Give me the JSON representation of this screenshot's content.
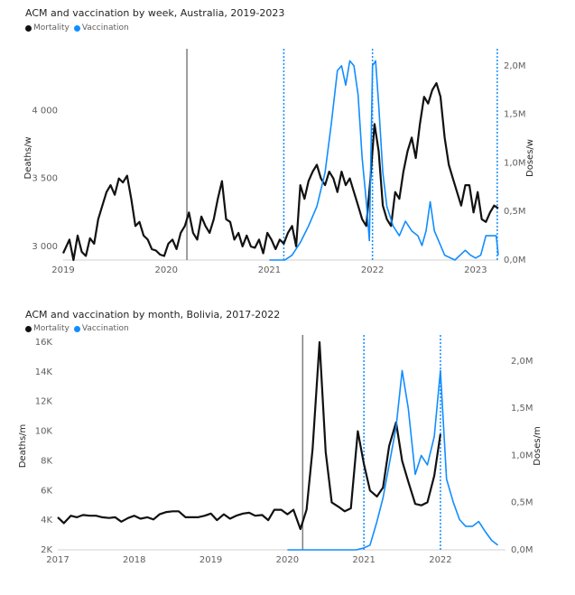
{
  "colors": {
    "mortality": "#111111",
    "vaccination": "#118dff",
    "event_line": "#7f7f7f"
  },
  "chart_data": [
    {
      "type": "line",
      "title": "ACM and vaccination by week, Australia, 2019-2023",
      "legend": {
        "placement": "top-left",
        "items": [
          "Mortality",
          "Vaccination"
        ]
      },
      "x_ticks": [
        "2019",
        "2020",
        "2021",
        "2022",
        "2023"
      ],
      "y_left": {
        "label": "Deaths/w",
        "ticks": [
          "3 000",
          "3 500",
          "4 000"
        ],
        "range": [
          2900,
          4400
        ]
      },
      "y_right": {
        "label": "Doses/w",
        "ticks": [
          "0,0M",
          "0,5M",
          "1,0M",
          "1,5M",
          "2,0M"
        ],
        "range": [
          0,
          2.1
        ]
      },
      "vertical_markers": [
        {
          "x": 2020.2,
          "style": "solid"
        },
        {
          "x": 2021.14,
          "style": "dotted"
        },
        {
          "x": 2022.0,
          "style": "dotted"
        },
        {
          "x": 2023.21,
          "style": "dotted"
        }
      ],
      "grid": false,
      "series": [
        {
          "name": "Mortality",
          "axis": "left",
          "x": [
            2019.0,
            2019.06,
            2019.1,
            2019.14,
            2019.18,
            2019.22,
            2019.26,
            2019.3,
            2019.34,
            2019.38,
            2019.42,
            2019.46,
            2019.5,
            2019.54,
            2019.58,
            2019.62,
            2019.66,
            2019.7,
            2019.74,
            2019.78,
            2019.82,
            2019.86,
            2019.9,
            2019.94,
            2019.98,
            2020.02,
            2020.06,
            2020.1,
            2020.14,
            2020.18,
            2020.22,
            2020.26,
            2020.3,
            2020.34,
            2020.38,
            2020.42,
            2020.46,
            2020.5,
            2020.54,
            2020.58,
            2020.62,
            2020.66,
            2020.7,
            2020.74,
            2020.78,
            2020.82,
            2020.86,
            2020.9,
            2020.94,
            2020.98,
            2021.02,
            2021.06,
            2021.1,
            2021.14,
            2021.18,
            2021.22,
            2021.26,
            2021.3,
            2021.34,
            2021.38,
            2021.42,
            2021.46,
            2021.5,
            2021.54,
            2021.58,
            2021.62,
            2021.66,
            2021.7,
            2021.74,
            2021.78,
            2021.82,
            2021.86,
            2021.9,
            2021.94,
            2021.98,
            2022.02,
            2022.06,
            2022.1,
            2022.14,
            2022.18,
            2022.22,
            2022.26,
            2022.3,
            2022.34,
            2022.38,
            2022.42,
            2022.46,
            2022.5,
            2022.54,
            2022.58,
            2022.62,
            2022.66,
            2022.7,
            2022.74,
            2022.78,
            2022.82,
            2022.86,
            2022.9,
            2022.94,
            2022.98,
            2023.02,
            2023.06,
            2023.1,
            2023.14,
            2023.18,
            2023.22
          ],
          "values": [
            2950,
            3050,
            2900,
            3080,
            2960,
            2930,
            3060,
            3020,
            3200,
            3300,
            3400,
            3450,
            3380,
            3500,
            3470,
            3520,
            3350,
            3150,
            3180,
            3080,
            3050,
            2980,
            2970,
            2940,
            2930,
            3020,
            3050,
            2980,
            3100,
            3150,
            3250,
            3100,
            3050,
            3220,
            3150,
            3100,
            3200,
            3350,
            3480,
            3200,
            3180,
            3050,
            3100,
            3000,
            3080,
            3000,
            2990,
            3050,
            2950,
            3100,
            3050,
            2980,
            3050,
            3020,
            3100,
            3150,
            3000,
            3450,
            3350,
            3480,
            3550,
            3600,
            3500,
            3450,
            3550,
            3500,
            3400,
            3550,
            3450,
            3500,
            3400,
            3300,
            3200,
            3150,
            3500,
            3900,
            3700,
            3300,
            3200,
            3150,
            3400,
            3350,
            3550,
            3700,
            3800,
            3650,
            3900,
            4100,
            4050,
            4150,
            4200,
            4100,
            3800,
            3600,
            3500,
            3400,
            3300,
            3450,
            3450,
            3250,
            3400,
            3200,
            3180,
            3250,
            3300,
            3280
          ]
        },
        {
          "name": "Vaccination",
          "axis": "right",
          "x": [
            2021.0,
            2021.15,
            2021.22,
            2021.3,
            2021.38,
            2021.46,
            2021.54,
            2021.6,
            2021.66,
            2021.7,
            2021.74,
            2021.78,
            2021.82,
            2021.86,
            2021.9,
            2021.94,
            2021.97,
            2022.0,
            2022.03,
            2022.06,
            2022.1,
            2022.14,
            2022.2,
            2022.26,
            2022.32,
            2022.38,
            2022.44,
            2022.48,
            2022.52,
            2022.56,
            2022.6,
            2022.7,
            2022.8,
            2022.85,
            2022.9,
            2022.95,
            2023.0,
            2023.05,
            2023.1,
            2023.15,
            2023.2,
            2023.22
          ],
          "values": [
            0,
            0,
            0.05,
            0.18,
            0.35,
            0.55,
            0.9,
            1.4,
            1.95,
            2.0,
            1.8,
            2.05,
            2.0,
            1.7,
            1.05,
            0.6,
            0.2,
            2.0,
            2.05,
            1.6,
            0.9,
            0.55,
            0.35,
            0.25,
            0.4,
            0.3,
            0.25,
            0.15,
            0.3,
            0.6,
            0.3,
            0.05,
            0.0,
            0.05,
            0.1,
            0.05,
            0.02,
            0.05,
            0.25,
            0.25,
            0.25,
            0.05
          ]
        }
      ]
    },
    {
      "type": "line",
      "title": "ACM and vaccination by month, Bolivia, 2017-2022",
      "legend": {
        "placement": "top-left",
        "items": [
          "Mortality",
          "Vaccination"
        ]
      },
      "x_ticks": [
        "2017",
        "2018",
        "2019",
        "2020",
        "2021",
        "2022"
      ],
      "y_left": {
        "label": "Deaths/m",
        "ticks": [
          "2K",
          "4K",
          "6K",
          "8K",
          "10K",
          "12K",
          "14K",
          "16K"
        ],
        "range": [
          2000,
          16000
        ]
      },
      "y_right": {
        "label": "Doses/m",
        "ticks": [
          "0,0M",
          "0,5M",
          "1,0M",
          "1,5M",
          "2,0M"
        ],
        "range": [
          0,
          2.2
        ]
      },
      "vertical_markers": [
        {
          "x": 2020.2,
          "style": "solid"
        },
        {
          "x": 2021.0,
          "style": "dotted"
        },
        {
          "x": 2022.0,
          "style": "dotted"
        }
      ],
      "grid": false,
      "series": [
        {
          "name": "Mortality",
          "axis": "left",
          "x": [
            2017.0,
            2017.08,
            2017.17,
            2017.25,
            2017.33,
            2017.42,
            2017.5,
            2017.58,
            2017.67,
            2017.75,
            2017.83,
            2017.92,
            2018.0,
            2018.08,
            2018.17,
            2018.25,
            2018.33,
            2018.42,
            2018.5,
            2018.58,
            2018.67,
            2018.75,
            2018.83,
            2018.92,
            2019.0,
            2019.08,
            2019.17,
            2019.25,
            2019.33,
            2019.42,
            2019.5,
            2019.58,
            2019.67,
            2019.75,
            2019.83,
            2019.92,
            2020.0,
            2020.08,
            2020.17,
            2020.25,
            2020.33,
            2020.42,
            2020.5,
            2020.58,
            2020.67,
            2020.75,
            2020.83,
            2020.92,
            2021.0,
            2021.08,
            2021.17,
            2021.25,
            2021.33,
            2021.42,
            2021.5,
            2021.58,
            2021.67,
            2021.75,
            2021.83,
            2021.92,
            2022.0
          ],
          "values": [
            4200,
            3800,
            4300,
            4200,
            4350,
            4300,
            4300,
            4200,
            4150,
            4200,
            3900,
            4150,
            4300,
            4100,
            4200,
            4050,
            4400,
            4550,
            4600,
            4600,
            4200,
            4200,
            4200,
            4300,
            4450,
            4000,
            4400,
            4100,
            4300,
            4450,
            4500,
            4300,
            4350,
            4000,
            4700,
            4700,
            4400,
            4700,
            3400,
            4700,
            8800,
            16000,
            8600,
            5200,
            4900,
            4600,
            4800,
            10000,
            7800,
            6000,
            5600,
            6200,
            9000,
            10600,
            8000,
            6600,
            5100,
            5000,
            5200,
            7000,
            9800
          ]
        },
        {
          "name": "Vaccination",
          "axis": "right",
          "x": [
            2020.0,
            2020.5,
            2020.9,
            2021.0,
            2021.08,
            2021.17,
            2021.25,
            2021.33,
            2021.42,
            2021.5,
            2021.58,
            2021.67,
            2021.75,
            2021.83,
            2021.92,
            2022.0,
            2022.08,
            2022.17,
            2022.25,
            2022.33,
            2022.42,
            2022.5,
            2022.58,
            2022.67,
            2022.75
          ],
          "values": [
            0,
            0,
            0,
            0.02,
            0.05,
            0.3,
            0.55,
            0.9,
            1.3,
            1.9,
            1.5,
            0.8,
            1.0,
            0.9,
            1.2,
            1.9,
            0.75,
            0.5,
            0.32,
            0.25,
            0.25,
            0.3,
            0.2,
            0.1,
            0.05
          ]
        }
      ]
    }
  ]
}
